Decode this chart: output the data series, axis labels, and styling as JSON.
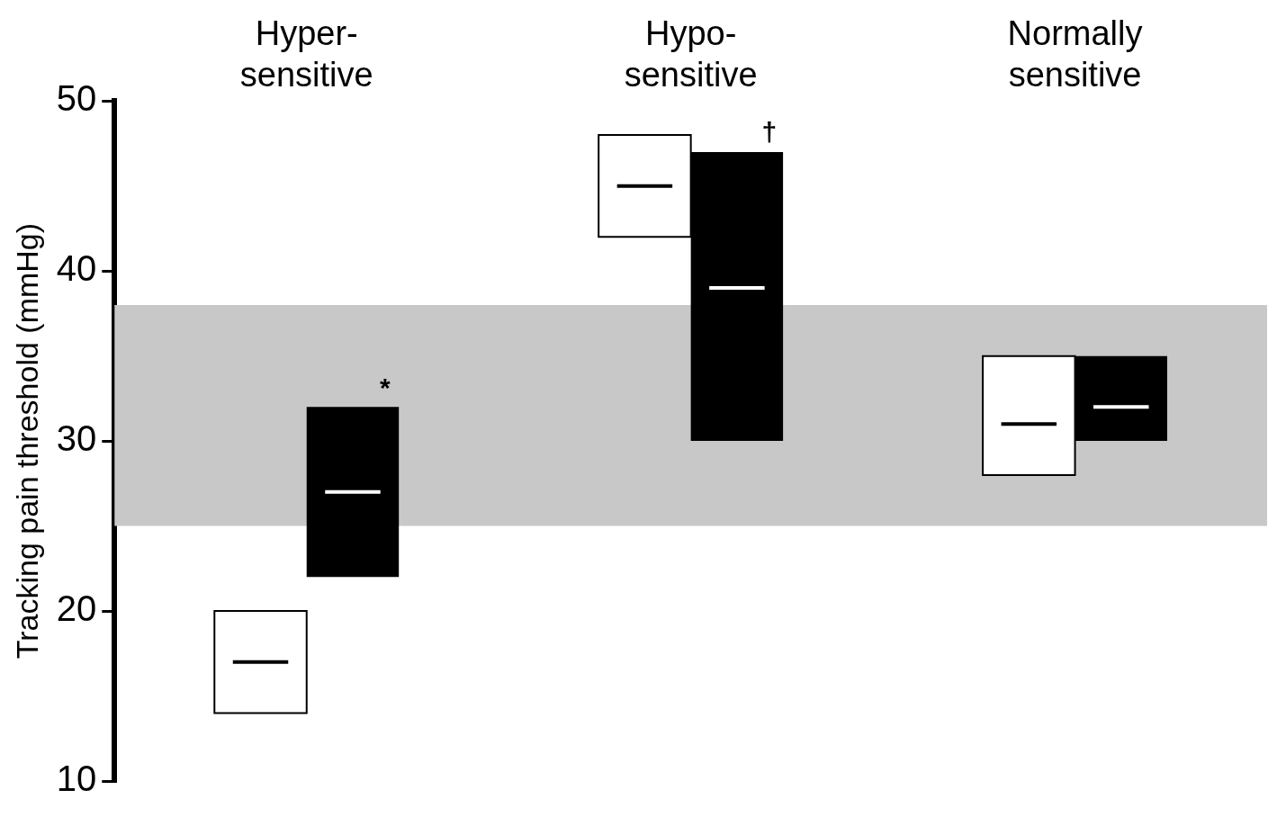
{
  "chart_data": {
    "type": "box",
    "ylabel": "Tracking pain threshold (mmHg)",
    "categories": [
      "Hyper-\nsensitive",
      "Hypo-\nsensitive",
      "Normally\nsensitive"
    ],
    "series": [
      {
        "color": "#ffffff",
        "boxes": [
          {
            "low": 14,
            "q1": 14,
            "median": 17,
            "q3": 20,
            "high": 20
          },
          {
            "low": 42,
            "q1": 42,
            "median": 45,
            "q3": 48,
            "high": 48
          },
          {
            "low": 28,
            "q1": 28,
            "median": 31,
            "q3": 35,
            "high": 35
          }
        ]
      },
      {
        "color": "#000000",
        "boxes": [
          {
            "low": 22,
            "q1": 22,
            "median": 27,
            "q3": 32,
            "high": 32
          },
          {
            "low": 30,
            "q1": 30,
            "median": 39,
            "q3": 47,
            "high": 47
          },
          {
            "low": 30,
            "q1": 30,
            "median": 32,
            "q3": 35,
            "high": 35
          }
        ]
      }
    ],
    "ylim": [
      10,
      50
    ],
    "yticks": [
      10,
      20,
      30,
      40,
      50
    ],
    "bands": [
      {
        "axis": "y",
        "from": 25,
        "to": 38,
        "color": "#c8c8c8"
      }
    ],
    "annotations": [
      "*",
      "†"
    ],
    "grid": false,
    "legend": false
  }
}
